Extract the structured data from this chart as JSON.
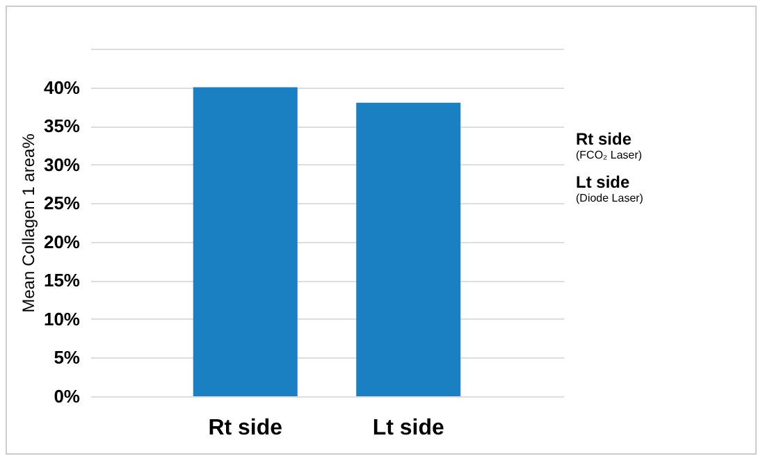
{
  "chart_data": {
    "type": "bar",
    "ylabel": "Mean Collagen 1 area%",
    "categories": [
      "Rt side",
      "Lt side"
    ],
    "values": [
      40,
      38
    ],
    "color": "#1a80c2",
    "ylim": [
      0,
      45
    ],
    "yticks": [
      {
        "value": 0,
        "label": "0%"
      },
      {
        "value": 5,
        "label": "5%"
      },
      {
        "value": 10,
        "label": "10%"
      },
      {
        "value": 15,
        "label": "15%"
      },
      {
        "value": 20,
        "label": "20%"
      },
      {
        "value": 25,
        "label": "25%"
      },
      {
        "value": 30,
        "label": "30%"
      },
      {
        "value": 35,
        "label": "35%"
      },
      {
        "value": 40,
        "label": "40%"
      },
      {
        "value": 45,
        "label": null
      }
    ],
    "grid": true,
    "annotations": [
      "Rt side",
      "(FCO₂  Laser)",
      "Lt side",
      "(Diode Laser)"
    ]
  }
}
